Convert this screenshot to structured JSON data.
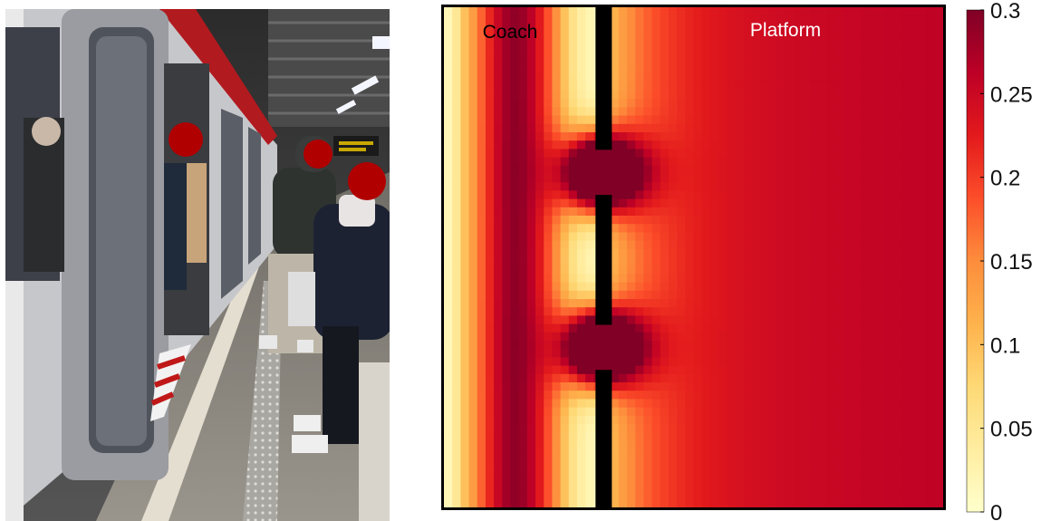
{
  "chart_data": {
    "type": "heatmap",
    "title": "",
    "regions": {
      "left_label": "Coach",
      "right_label": "Platform"
    },
    "doors": 2,
    "colorbar": {
      "range": [
        0,
        0.3
      ],
      "ticks": [
        "0",
        "0.05",
        "0.1",
        "0.15",
        "0.2",
        "0.25",
        "0.3"
      ],
      "colormap": [
        "#ffffcc",
        "#ffeda0",
        "#fed976",
        "#feb24c",
        "#fd8d3c",
        "#fc4e2a",
        "#e31a1c",
        "#bd0026",
        "#800026"
      ]
    },
    "field_description": {
      "coach_far_wall_value": 0.01,
      "coach_typical_value": 0.2,
      "door_value": 0.3,
      "platform_near_wall_value": 0.08,
      "platform_far_value": 0.24
    }
  },
  "photo": {
    "colors": {
      "ceiling": "#3a3a3a",
      "train_body": "#c9c9cc",
      "train_window": "#5a5e66",
      "floor": "#8f8a80",
      "platform_edge": "#d8d2c4",
      "face_blur": "#b00000"
    }
  }
}
